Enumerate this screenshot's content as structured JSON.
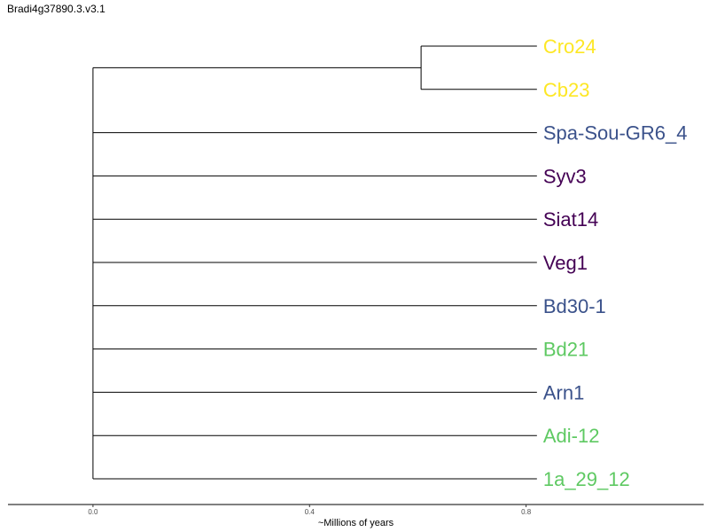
{
  "title": "Bradi4g37890.3.v3.1",
  "chart_data": {
    "type": "dendrogram",
    "title": "Bradi4g37890.3.v3.1",
    "xlabel": "~Millions of years",
    "xlim": [
      -0.157,
      1.128
    ],
    "x_ticks": [
      {
        "value": 0.0,
        "label": "0.0"
      },
      {
        "value": 0.4,
        "label": "0.4"
      },
      {
        "value": 0.8,
        "label": "0.8"
      }
    ],
    "root_x": 0.0,
    "tips": [
      {
        "label": "Cro24",
        "color": "#fde725",
        "branch_end": 0.82
      },
      {
        "label": "Cb23",
        "color": "#fde725",
        "branch_end": 0.82
      },
      {
        "label": "Spa-Sou-GR6_4",
        "color": "#3b528b",
        "branch_end": 0.82
      },
      {
        "label": "Syv3",
        "color": "#440154",
        "branch_end": 0.82
      },
      {
        "label": "Siat14",
        "color": "#440154",
        "branch_end": 0.82
      },
      {
        "label": "Veg1",
        "color": "#440154",
        "branch_end": 0.82
      },
      {
        "label": "Bd30-1",
        "color": "#3b528b",
        "branch_end": 0.82
      },
      {
        "label": "Bd21",
        "color": "#5ec962",
        "branch_end": 0.82
      },
      {
        "label": "Arn1",
        "color": "#3b528b",
        "branch_end": 0.82
      },
      {
        "label": "Adi-12",
        "color": "#5ec962",
        "branch_end": 0.82
      },
      {
        "label": "1a_29_12",
        "color": "#5ec962",
        "branch_end": 0.82
      }
    ],
    "clades": [
      {
        "members": [
          "Cro24",
          "Cb23"
        ],
        "node_x": 0.606
      }
    ],
    "line_color": "#000000"
  }
}
